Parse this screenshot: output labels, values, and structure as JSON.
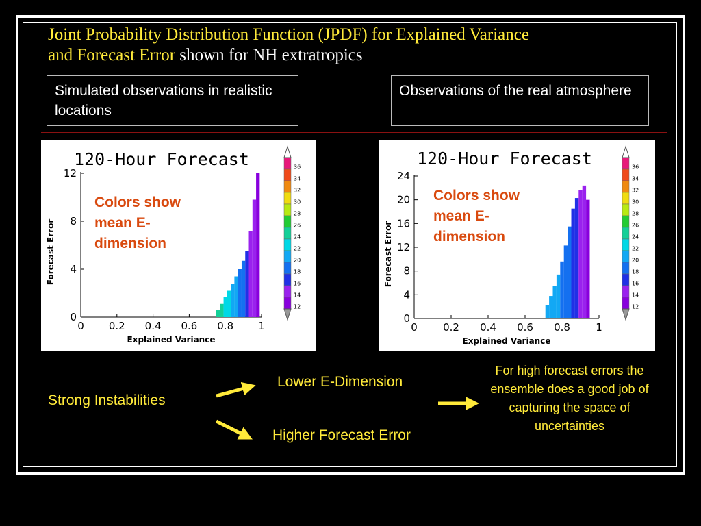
{
  "slide": {
    "title_part1": "Joint Probability Distribution Function (JPDF) for Explained Variance",
    "title_part2": "and Forecast Error",
    "title_part3": " shown for NH extratropics"
  },
  "boxes": {
    "left": "Simulated observations in realistic locations",
    "right": "Observations of the real atmosphere"
  },
  "annotations": {
    "colors_note": "Colors show mean E-dimension"
  },
  "flow": {
    "cause": "Strong Instabilities",
    "effect_1": "Lower E-Dimension",
    "effect_2": "Higher Forecast Error",
    "conclusion": "For high forecast errors the ensemble does a good job of capturing the space of uncertainties"
  },
  "colors": {
    "text_yellow": "#ffea3a",
    "note_orange": "#d94a0f",
    "rule_red": "#8a1111"
  },
  "colorbar": {
    "levels": [
      12,
      14,
      16,
      18,
      20,
      22,
      24,
      26,
      28,
      30,
      32,
      34,
      36
    ],
    "colors": [
      "#8800dd",
      "#9a22ee",
      "#2030e6",
      "#1470f0",
      "#12a8f4",
      "#00d8e6",
      "#14d098",
      "#22cc33",
      "#b8ea12",
      "#f0dc10",
      "#f08a10",
      "#f04a1a",
      "#e8187a"
    ]
  },
  "chart_data": [
    {
      "type": "heatmap",
      "title": "120-Hour Forecast",
      "xlabel": "Explained Variance",
      "ylabel": "Forecast Error",
      "xlim": [
        0,
        1
      ],
      "ylim": [
        0,
        12
      ],
      "xticks": [
        "0",
        "0.2",
        "0.4",
        "0.6",
        "0.8",
        "1"
      ],
      "yticks": [
        "0",
        "4",
        "8",
        "12"
      ],
      "grid": false,
      "legend": "colorbar, right",
      "colorbar_labels": [
        "12",
        "14",
        "16",
        "18",
        "20",
        "22",
        "24",
        "26",
        "28",
        "30",
        "32",
        "34",
        "36"
      ],
      "columns": [
        {
          "x": 0.76,
          "ymax": 0.6,
          "e": 24
        },
        {
          "x": 0.78,
          "ymax": 1.1,
          "e": 23
        },
        {
          "x": 0.8,
          "ymax": 1.7,
          "e": 22
        },
        {
          "x": 0.82,
          "ymax": 2.2,
          "e": 21
        },
        {
          "x": 0.84,
          "ymax": 2.8,
          "e": 20
        },
        {
          "x": 0.86,
          "ymax": 3.4,
          "e": 19
        },
        {
          "x": 0.88,
          "ymax": 4.0,
          "e": 18
        },
        {
          "x": 0.9,
          "ymax": 4.7,
          "e": 17
        },
        {
          "x": 0.92,
          "ymax": 5.5,
          "e": 15
        },
        {
          "x": 0.94,
          "ymax": 7.2,
          "e": 14
        },
        {
          "x": 0.96,
          "ymax": 9.8,
          "e": 13
        },
        {
          "x": 0.98,
          "ymax": 12.0,
          "e": 12
        }
      ]
    },
    {
      "type": "heatmap",
      "title": "120-Hour Forecast",
      "xlabel": "Explained Variance",
      "ylabel": "Forecast Error",
      "xlim": [
        0,
        1
      ],
      "ylim": [
        0,
        24
      ],
      "xticks": [
        "0",
        "0.2",
        "0.4",
        "0.6",
        "0.8",
        "1"
      ],
      "yticks": [
        "0",
        "4",
        "8",
        "12",
        "16",
        "20",
        "24"
      ],
      "grid": false,
      "legend": "colorbar, right",
      "colorbar_labels": [
        "12",
        "14",
        "16",
        "18",
        "20",
        "22",
        "24",
        "26",
        "28",
        "30",
        "32",
        "34",
        "36"
      ],
      "columns": [
        {
          "x": 0.72,
          "ymax": 2.2,
          "e": 20
        },
        {
          "x": 0.74,
          "ymax": 3.8,
          "e": 20
        },
        {
          "x": 0.76,
          "ymax": 5.5,
          "e": 19
        },
        {
          "x": 0.78,
          "ymax": 7.4,
          "e": 19
        },
        {
          "x": 0.8,
          "ymax": 9.6,
          "e": 18
        },
        {
          "x": 0.82,
          "ymax": 12.3,
          "e": 18
        },
        {
          "x": 0.84,
          "ymax": 15.5,
          "e": 17
        },
        {
          "x": 0.86,
          "ymax": 18.5,
          "e": 16
        },
        {
          "x": 0.88,
          "ymax": 20.3,
          "e": 15
        },
        {
          "x": 0.9,
          "ymax": 21.6,
          "e": 14
        },
        {
          "x": 0.92,
          "ymax": 22.4,
          "e": 13
        },
        {
          "x": 0.94,
          "ymax": 20.0,
          "e": 12
        }
      ]
    }
  ]
}
